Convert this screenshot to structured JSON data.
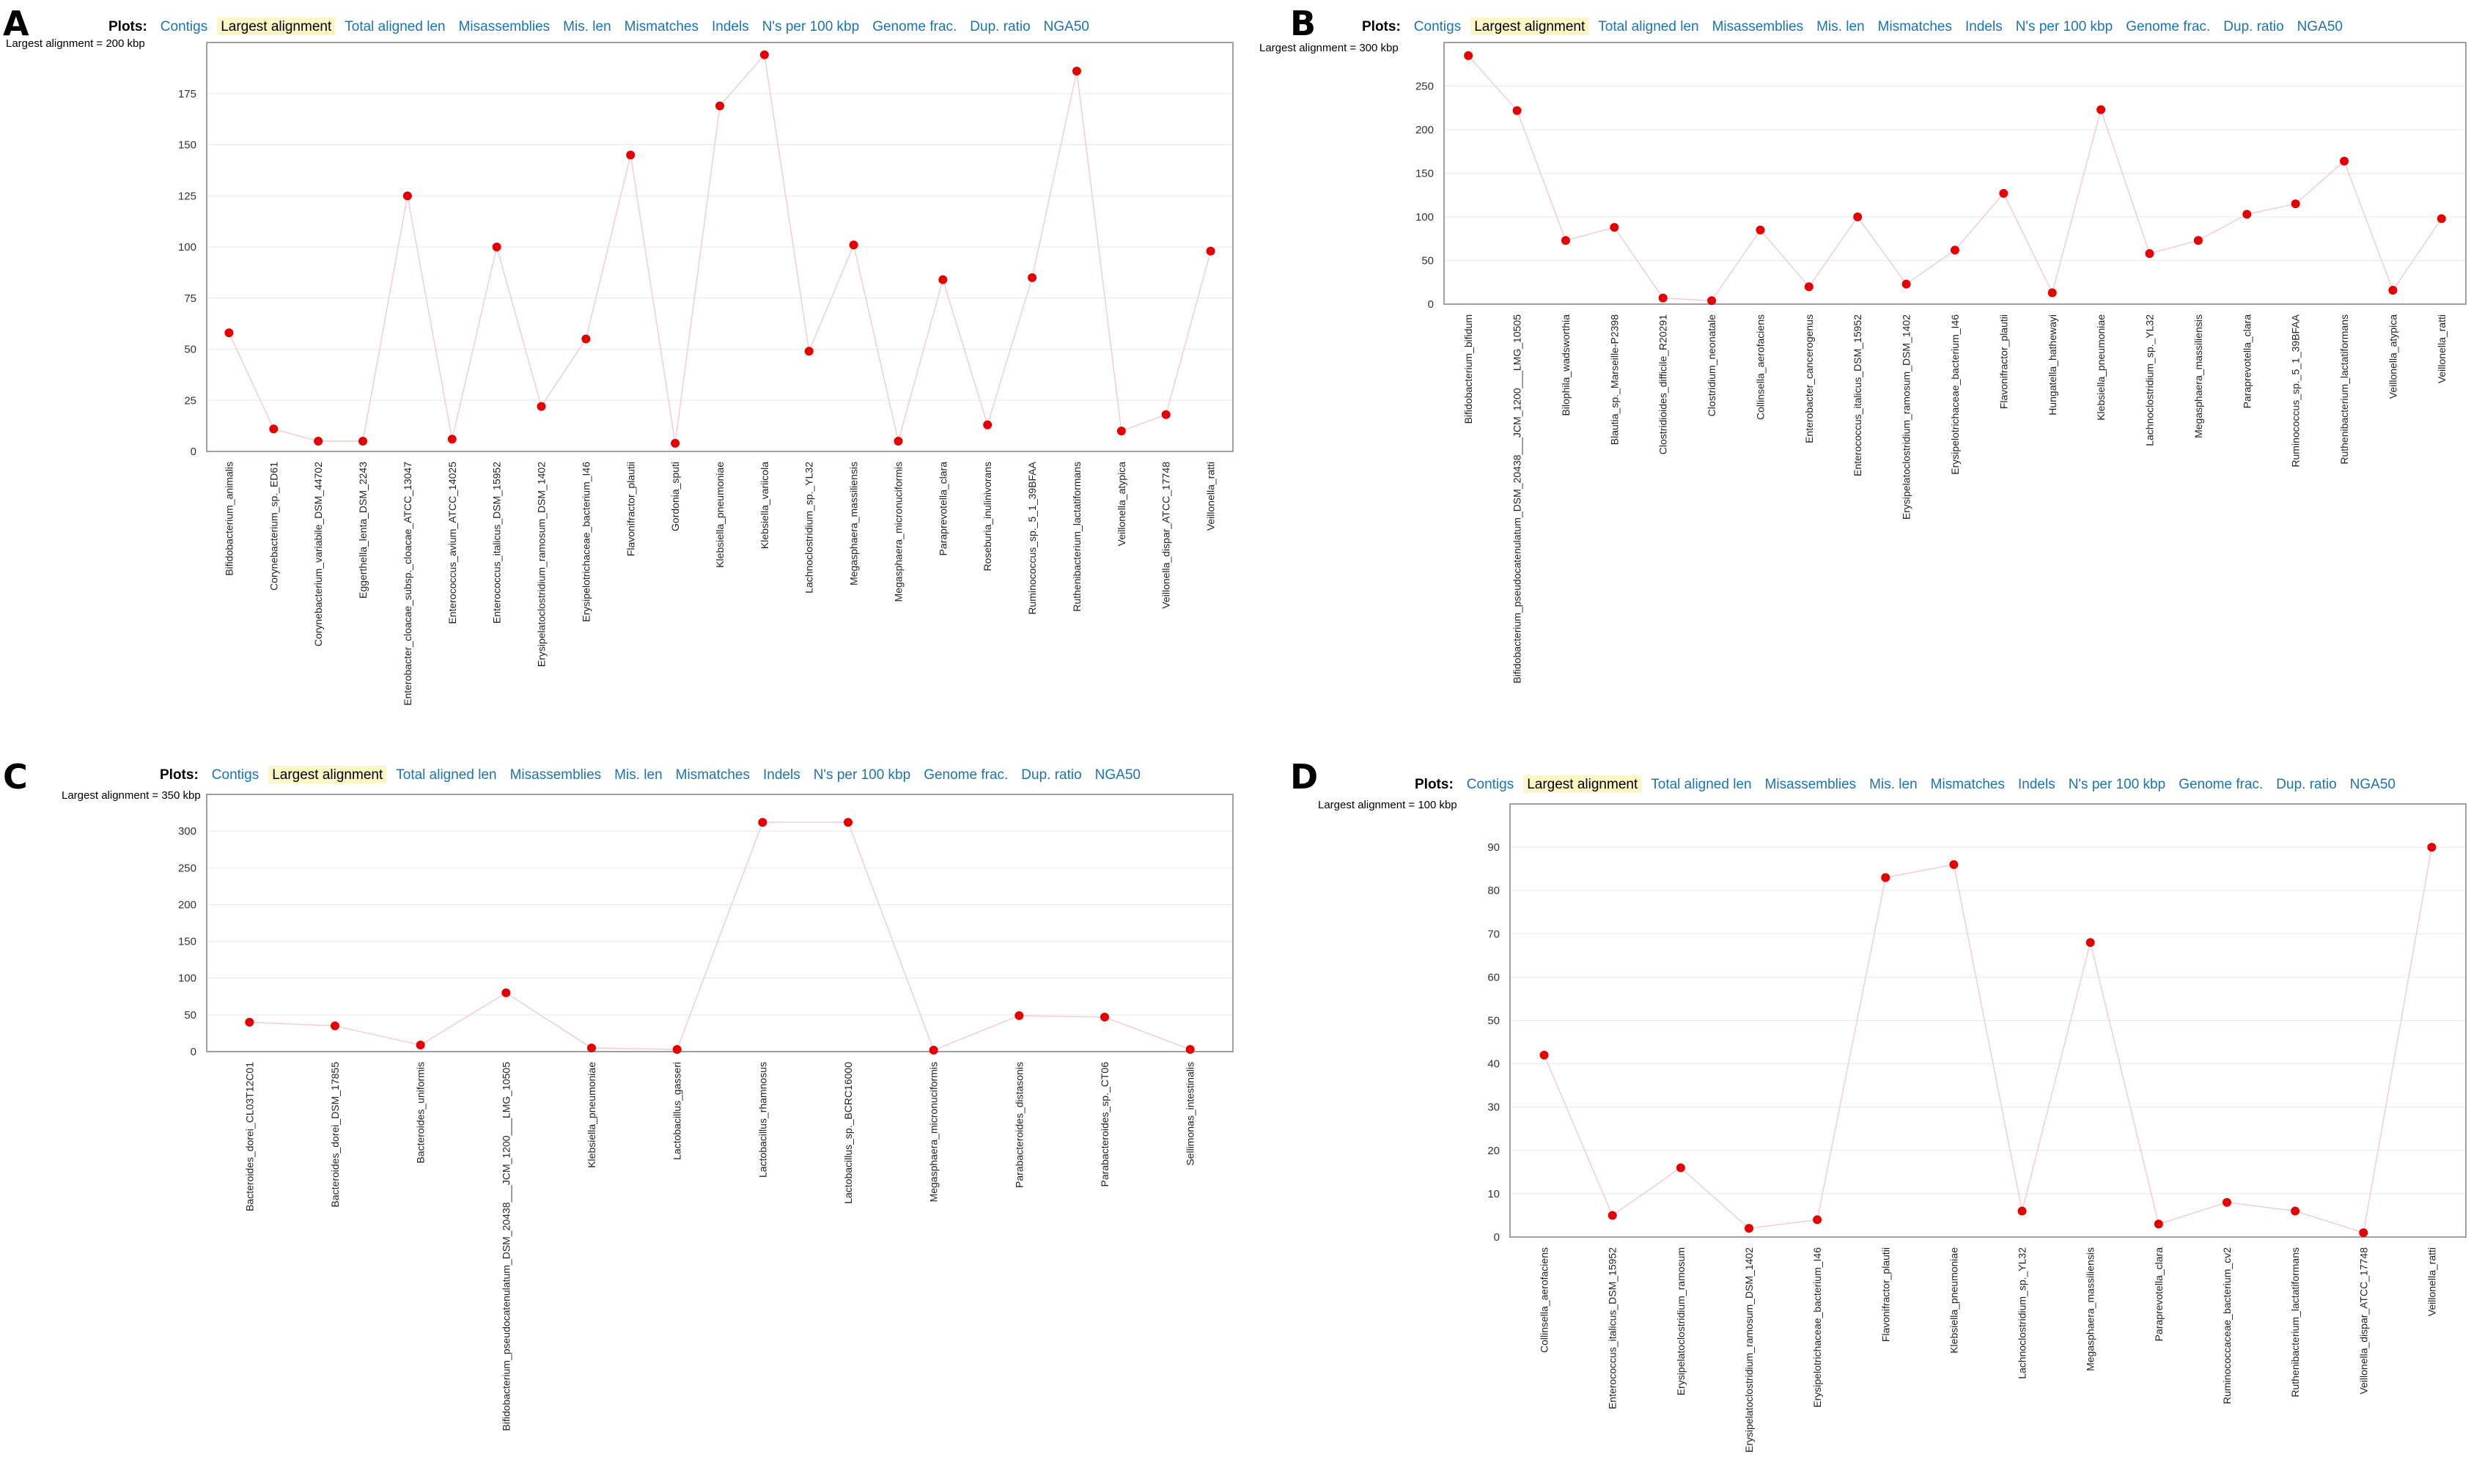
{
  "colors": {
    "link": "#1a73b5",
    "active_highlight": "#fbf6c4",
    "point": "#e60000",
    "line": "#f6c9cc",
    "grid": "#e8e8e8"
  },
  "menu": {
    "plots_label": "Plots:",
    "items": [
      "Contigs",
      "Largest alignment",
      "Total aligned len",
      "Misassemblies",
      "Mis. len",
      "Mismatches",
      "Indels",
      "N's per 100 kbp",
      "Genome frac.",
      "Dup. ratio",
      "NGA50"
    ],
    "active": "Largest alignment"
  },
  "chart_data": [
    {
      "panel": "A",
      "type": "line",
      "title": "Largest alignment",
      "ylabel": "Largest alignment = 200 kbp",
      "ylim": [
        0,
        200
      ],
      "yticks": [
        0,
        25,
        50,
        75,
        100,
        125,
        150,
        175
      ],
      "categories": [
        "Bifidobacterium_animalis",
        "Corynebacterium_sp._ED61",
        "Corynebacterium_variabile_DSM_44702",
        "Eggerthella_lenta_DSM_2243",
        "Enterobacter_cloacae_subsp._cloacae_ATCC_13047",
        "Enterococcus_avium_ATCC_14025",
        "Enterococcus_italicus_DSM_15952",
        "Erysipelatoclostridium_ramosum_DSM_1402",
        "Erysipelotrichaceae_bacterium_I46",
        "Flavonifractor_plautii",
        "Gordonia_sputi",
        "Klebsiella_pneumoniae",
        "Klebsiella_variicola",
        "Lachnoclostridium_sp._YL32",
        "Megasphaera_massiliensis",
        "Megasphaera_micronuciformis",
        "Paraprevotella_clara",
        "Roseburia_inulinivorans",
        "Ruminococcus_sp._5_1_39BFAA",
        "Ruthenibacterium_lactatiformans",
        "Veillonella_atypica",
        "Veillonella_dispar_ATCC_17748",
        "Veillonella_ratti"
      ],
      "values": [
        58,
        11,
        5,
        5,
        125,
        6,
        100,
        22,
        55,
        145,
        4,
        169,
        194,
        49,
        101,
        5,
        84,
        13,
        85,
        186,
        10,
        18,
        98
      ]
    },
    {
      "panel": "B",
      "type": "line",
      "title": "Largest alignment",
      "ylabel": "Largest alignment = 300 kbp",
      "ylim": [
        0,
        300
      ],
      "yticks": [
        0,
        50,
        100,
        150,
        200,
        250
      ],
      "categories": [
        "Bifidobacterium_bifidum",
        "Bifidobacterium_pseudocatenulatum_DSM_20438___JCM_1200___LMG_10505",
        "Bilophila_wadsworthia",
        "Blautia_sp._Marseille-P2398",
        "Clostridioides_difficile_R20291",
        "Clostridium_neonatale",
        "Collinsella_aerofaciens",
        "Enterobacter_cancerogenus",
        "Enterococcus_italicus_DSM_15952",
        "Erysipelatoclostridium_ramosum_DSM_1402",
        "Erysipelotrichaceae_bacterium_I46",
        "Flavonifractor_plautii",
        "Hungatella_hathewayi",
        "Klebsiella_pneumoniae",
        "Lachnoclostridium_sp._YL32",
        "Megasphaera_massiliensis",
        "Paraprevotella_clara",
        "Ruminococcus_sp._5_1_39BFAA",
        "Ruthenibacterium_lactatiformans",
        "Veillonella_atypica",
        "Veillonella_ratti"
      ],
      "values": [
        285,
        222,
        73,
        88,
        7,
        4,
        85,
        20,
        100,
        23,
        62,
        127,
        13,
        223,
        58,
        73,
        103,
        115,
        164,
        16,
        98
      ]
    },
    {
      "panel": "C",
      "type": "line",
      "title": "Largest alignment",
      "ylabel": "Largest alignment = 350 kbp",
      "ylim": [
        0,
        350
      ],
      "yticks": [
        0,
        50,
        100,
        150,
        200,
        250,
        300
      ],
      "categories": [
        "Bacteroides_dorei_CL03T12C01",
        "Bacteroides_dorei_DSM_17855",
        "Bacteroides_uniformis",
        "Bifidobacterium_pseudocatenulatum_DSM_20438___JCM_1200___LMG_10505",
        "Klebsiella_pneumoniae",
        "Lactobacillus_gasseri",
        "Lactobacillus_rhamnosus",
        "Lactobacillus_sp._BCRC16000",
        "Megasphaera_micronuciformis",
        "Parabacteroides_distasonis",
        "Parabacteroides_sp._CT06",
        "Sellimonas_intestinalis"
      ],
      "values": [
        40,
        35,
        9,
        80,
        5,
        3,
        312,
        312,
        2,
        49,
        47,
        3
      ]
    },
    {
      "panel": "D",
      "type": "line",
      "title": "Largest alignment",
      "ylabel": "Largest alignment = 100 kbp",
      "ylim": [
        0,
        100
      ],
      "yticks": [
        0,
        10,
        20,
        30,
        40,
        50,
        60,
        70,
        80,
        90
      ],
      "categories": [
        "Collinsella_aerofaciens",
        "Enterococcus_italicus_DSM_15952",
        "Erysipelatoclostridium_ramosum",
        "Erysipelatoclostridium_ramosum_DSM_1402",
        "Erysipelotrichaceae_bacterium_I46",
        "Flavonifractor_plautii",
        "Klebsiella_pneumoniae",
        "Lachnoclostridium_sp._YL32",
        "Megasphaera_massiliensis",
        "Paraprevotella_clara",
        "Ruminococcaceae_bacterium_cv2",
        "Ruthenibacterium_lactatiformans",
        "Veillonella_dispar_ATCC_17748",
        "Veillonella_ratti"
      ],
      "values": [
        42,
        5,
        16,
        2,
        4,
        83,
        86,
        6,
        68,
        3,
        8,
        6,
        1,
        90
      ]
    }
  ]
}
